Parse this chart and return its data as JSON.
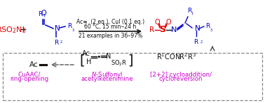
{
  "bg_color": "#ffffff",
  "fig_width": 3.78,
  "fig_height": 1.48,
  "red": "#dd0000",
  "blue": "#0000cc",
  "black": "#111111",
  "magenta": "#cc00cc",
  "gray": "#888888",
  "conditions": [
    "Ac≡  (2 eq.), CuI (0.1 eq.)",
    "60 °C, 15 min‒24 h",
    "21 examples in 36–97%"
  ],
  "cuaac": [
    "CuAAC/",
    "ring-opening"
  ],
  "nsulfonyl": [
    "N-Sulfonyl",
    "acetylketenimine"
  ],
  "cyclo": [
    "[2+2] cycloaddition/",
    "cycloreversion"
  ]
}
